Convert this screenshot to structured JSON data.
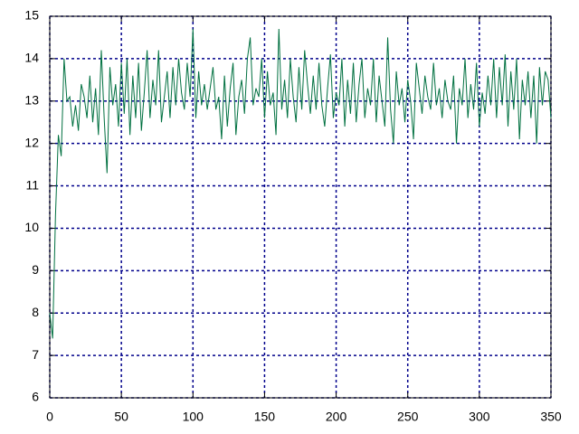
{
  "chart_data": {
    "type": "line",
    "xlim": [
      0,
      350
    ],
    "xticks": [
      0,
      50,
      100,
      150,
      200,
      250,
      300,
      350
    ],
    "ylim": [
      6,
      15
    ],
    "yticks": [
      6,
      7,
      8,
      9,
      10,
      11,
      12,
      13,
      14,
      15
    ],
    "grid": true,
    "series": [
      {
        "color": "#007040",
        "x": [
          0,
          2,
          4,
          6,
          8,
          10,
          12,
          14,
          16,
          18,
          20,
          22,
          24,
          26,
          28,
          30,
          32,
          34,
          36,
          38,
          40,
          42,
          44,
          46,
          48,
          50,
          52,
          54,
          56,
          58,
          60,
          62,
          64,
          66,
          68,
          70,
          72,
          74,
          76,
          78,
          80,
          82,
          84,
          86,
          88,
          90,
          92,
          94,
          96,
          98,
          100,
          102,
          104,
          106,
          108,
          110,
          112,
          114,
          116,
          118,
          120,
          122,
          124,
          126,
          128,
          130,
          132,
          134,
          136,
          138,
          140,
          142,
          144,
          146,
          148,
          150,
          152,
          154,
          156,
          158,
          160,
          162,
          164,
          166,
          168,
          170,
          172,
          174,
          176,
          178,
          180,
          182,
          184,
          186,
          188,
          190,
          192,
          194,
          196,
          198,
          200,
          202,
          204,
          206,
          208,
          210,
          212,
          214,
          216,
          218,
          220,
          222,
          224,
          226,
          228,
          230,
          232,
          234,
          236,
          238,
          240,
          242,
          244,
          246,
          248,
          250,
          252,
          254,
          256,
          258,
          260,
          262,
          264,
          266,
          268,
          270,
          272,
          274,
          276,
          278,
          280,
          282,
          284,
          286,
          288,
          290,
          292,
          294,
          296,
          298,
          300,
          302,
          304,
          306,
          308,
          310,
          312,
          314,
          316,
          318,
          320,
          322,
          324,
          326,
          328,
          330,
          332,
          334,
          336,
          338,
          340,
          342,
          344,
          346,
          348,
          350
        ],
        "values": [
          8.0,
          7.4,
          10.3,
          12.2,
          11.7,
          14.0,
          13.0,
          13.1,
          12.4,
          12.9,
          12.3,
          13.4,
          13.1,
          12.6,
          13.6,
          12.5,
          13.3,
          12.2,
          14.2,
          12.6,
          11.3,
          13.8,
          12.9,
          13.4,
          12.4,
          13.9,
          12.7,
          14.0,
          12.2,
          13.6,
          12.6,
          13.9,
          12.3,
          13.2,
          14.2,
          12.6,
          13.5,
          12.9,
          14.2,
          12.5,
          13.1,
          13.7,
          12.6,
          13.8,
          12.9,
          14.0,
          13.2,
          12.8,
          13.9,
          13.1,
          14.7,
          12.6,
          13.7,
          12.9,
          13.4,
          12.8,
          13.3,
          13.8,
          12.8,
          13.1,
          12.1,
          13.6,
          12.4,
          13.3,
          13.9,
          12.2,
          13.1,
          13.5,
          12.7,
          14.0,
          14.5,
          12.9,
          13.3,
          13.1,
          14.0,
          12.6,
          13.7,
          12.9,
          13.2,
          12.2,
          14.7,
          12.8,
          13.5,
          12.6,
          14.0,
          13.1,
          12.5,
          13.8,
          12.8,
          14.2,
          13.4,
          12.7,
          13.6,
          12.8,
          13.9,
          12.9,
          12.4,
          13.3,
          14.1,
          12.6,
          13.2,
          12.9,
          14.0,
          12.4,
          13.5,
          12.7,
          13.9,
          12.5,
          13.4,
          14.0,
          12.6,
          13.3,
          12.9,
          14.0,
          12.5,
          13.6,
          13.0,
          12.4,
          14.5,
          12.8,
          12.0,
          13.7,
          12.9,
          13.3,
          12.5,
          13.5,
          13.0,
          12.1,
          13.9,
          13.3,
          12.7,
          13.6,
          13.1,
          12.8,
          13.9,
          12.9,
          13.3,
          12.6,
          13.5,
          13.0,
          12.8,
          13.6,
          12.0,
          13.3,
          12.9,
          14.0,
          12.6,
          13.4,
          12.8,
          13.9,
          12.4,
          13.2,
          12.7,
          13.6,
          12.9,
          14.0,
          12.6,
          13.8,
          12.9,
          14.1,
          12.4,
          13.7,
          12.8,
          14.0,
          12.1,
          13.5,
          12.9,
          13.7,
          12.6,
          13.6,
          12.0,
          13.8,
          12.9,
          13.7,
          13.5,
          12.6
        ]
      }
    ]
  }
}
